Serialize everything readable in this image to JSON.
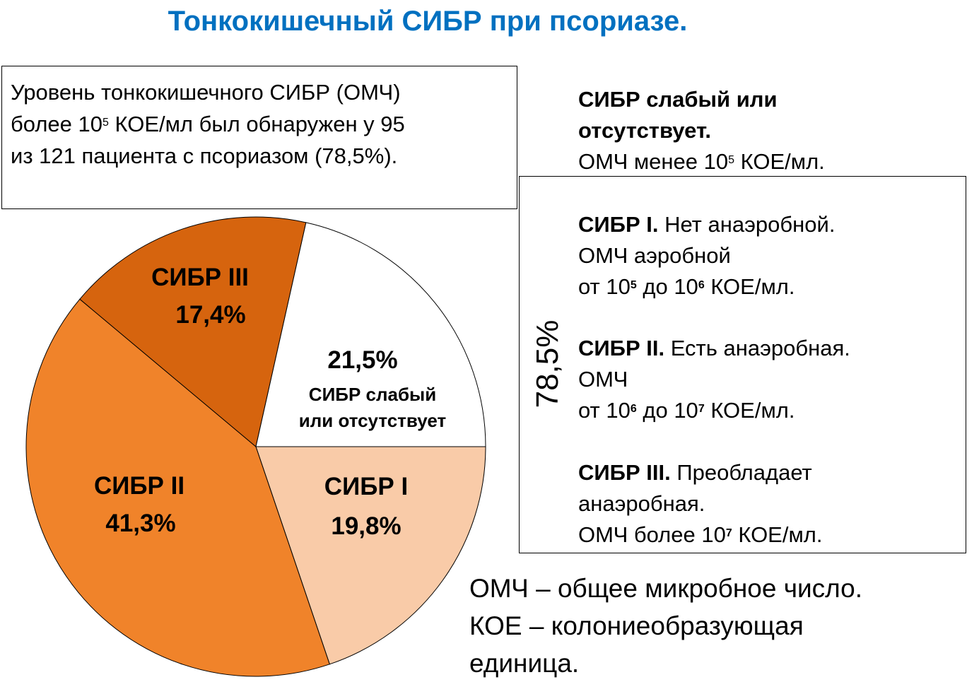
{
  "title": "Тонкокишечный СИБР при псориазе.",
  "intro": {
    "line1": "Уровень тонкокишечного СИБР (ОМЧ)",
    "line2_a": "более 10",
    "line2_sup": "5",
    "line2_b": " КОЕ/мл  был обнаружен  у 95",
    "line3": "из 121 пациента с псориазом (78,5%)."
  },
  "chart_data": {
    "type": "pie",
    "slices": [
      {
        "label": "СИБР слабый или отсутствует",
        "label_lines": [
          "СИБР слабый",
          "или отсутствует"
        ],
        "value": 21.5,
        "value_text": "21,5%",
        "color": "#ffffff"
      },
      {
        "label": "СИБР I",
        "value": 19.8,
        "value_text": "19,8%",
        "color": "#f9cba8"
      },
      {
        "label": "СИБР II",
        "value": 41.3,
        "value_text": "41,3%",
        "color": "#f0832a"
      },
      {
        "label": "СИБР III",
        "value": 17.4,
        "value_text": "17,4%",
        "color": "#d6640e"
      }
    ]
  },
  "vertical_label": "78,5%",
  "right": {
    "weak": {
      "title_l1": "СИБР слабый или",
      "title_l2": "отсутствует.",
      "text_a": "ОМЧ менее 10",
      "sup": "5",
      "text_b": " КОЕ/мл."
    },
    "s1": {
      "title": "СИБР I.",
      "rest": " Нет анаэробной.",
      "l2": "ОМЧ аэробной",
      "l3_a": "от 10",
      "sup1": "5",
      "l3_b": " до 10",
      "sup2": "6",
      "l3_c": " КОЕ/мл."
    },
    "s2": {
      "title": "СИБР II.",
      "rest": "  Есть анаэробная.",
      "l2": "ОМЧ",
      "l3_a": "от 10",
      "sup1": "6",
      "l3_b": " до 10",
      "sup2": "7",
      "l3_c": " КОЕ/мл."
    },
    "s3": {
      "title": "СИБР III.",
      "rest": " Преобладает",
      "l2": "анаэробная.",
      "l3_a": "ОМЧ более  10",
      "sup": "7",
      "l3_b": " КОЕ/мл."
    }
  },
  "legend": {
    "l1": "ОМЧ – общее микробное число.",
    "l2": "КОЕ – колониеобразующая",
    "l3": "единица."
  }
}
